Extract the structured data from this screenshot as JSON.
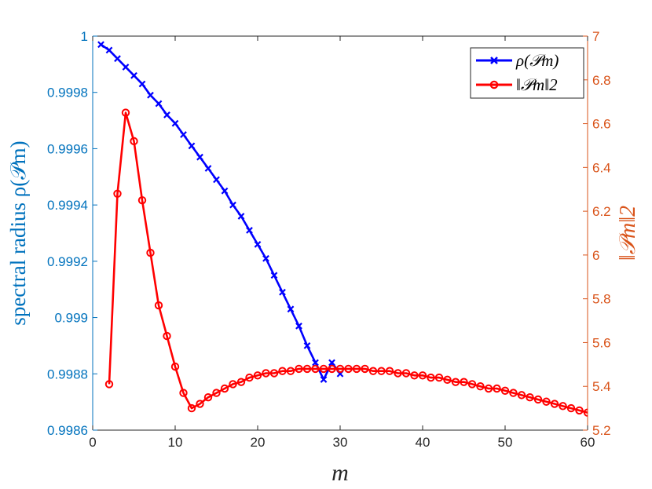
{
  "chart_data": {
    "type": "line",
    "xlabel": "m",
    "ylabel_left": "spectral radius ρ(𝒫m)",
    "ylabel_right": "‖𝒫m‖2",
    "xlim": [
      0,
      60
    ],
    "ylim_left": [
      0.9986,
      1.0
    ],
    "ylim_right": [
      5.2,
      7.0
    ],
    "x_ticks": [
      "0",
      "10",
      "20",
      "30",
      "40",
      "50",
      "60"
    ],
    "y_left_ticks": [
      "0.9986",
      "0.9988",
      "0.999",
      "0.9992",
      "0.9994",
      "0.9996",
      "0.9998",
      "1"
    ],
    "y_right_ticks": [
      "5.2",
      "5.4",
      "5.6",
      "5.8",
      "6",
      "6.2",
      "6.4",
      "6.6",
      "6.8",
      "7"
    ],
    "grid": false,
    "legend_position": "top-right",
    "colors": {
      "series1": "#0000ff",
      "series2": "#ff0000",
      "left_axis": "#0072bd",
      "right_axis": "#d95319",
      "x_axis": "#262626"
    },
    "series": [
      {
        "name": "ρ(𝒫m)",
        "axis": "left",
        "marker": "x",
        "x": [
          1,
          2,
          3,
          4,
          5,
          6,
          7,
          8,
          9,
          10,
          11,
          12,
          13,
          14,
          15,
          16,
          17,
          18,
          19,
          20,
          21,
          22,
          23,
          24,
          25,
          26,
          27,
          28,
          29,
          30
        ],
        "values": [
          0.99997,
          0.99995,
          0.99992,
          0.99989,
          0.99986,
          0.99983,
          0.99979,
          0.99976,
          0.99972,
          0.99969,
          0.99965,
          0.99961,
          0.99957,
          0.99953,
          0.99949,
          0.99945,
          0.9994,
          0.99936,
          0.99931,
          0.99926,
          0.99921,
          0.99915,
          0.99909,
          0.99903,
          0.99897,
          0.9989,
          0.99884,
          0.99878,
          0.99884,
          0.9988
        ]
      },
      {
        "name": "‖𝒫m‖2",
        "axis": "right",
        "marker": "o",
        "x": [
          2,
          3,
          4,
          5,
          6,
          7,
          8,
          9,
          10,
          11,
          12,
          13,
          14,
          15,
          16,
          17,
          18,
          19,
          20,
          21,
          22,
          23,
          24,
          25,
          26,
          27,
          28,
          29,
          30,
          31,
          32,
          33,
          34,
          35,
          36,
          37,
          38,
          39,
          40,
          41,
          42,
          43,
          44,
          45,
          46,
          47,
          48,
          49,
          50,
          51,
          52,
          53,
          54,
          55,
          56,
          57,
          58,
          59,
          60
        ],
        "values": [
          5.41,
          6.28,
          6.65,
          6.52,
          6.25,
          6.01,
          5.77,
          5.63,
          5.49,
          5.37,
          5.3,
          5.32,
          5.35,
          5.37,
          5.39,
          5.41,
          5.42,
          5.44,
          5.45,
          5.46,
          5.46,
          5.47,
          5.47,
          5.48,
          5.48,
          5.48,
          5.48,
          5.48,
          5.48,
          5.48,
          5.48,
          5.48,
          5.47,
          5.47,
          5.47,
          5.46,
          5.46,
          5.45,
          5.45,
          5.44,
          5.44,
          5.43,
          5.42,
          5.42,
          5.41,
          5.4,
          5.39,
          5.39,
          5.38,
          5.37,
          5.36,
          5.35,
          5.34,
          5.33,
          5.32,
          5.31,
          5.3,
          5.29,
          5.28
        ]
      }
    ]
  }
}
